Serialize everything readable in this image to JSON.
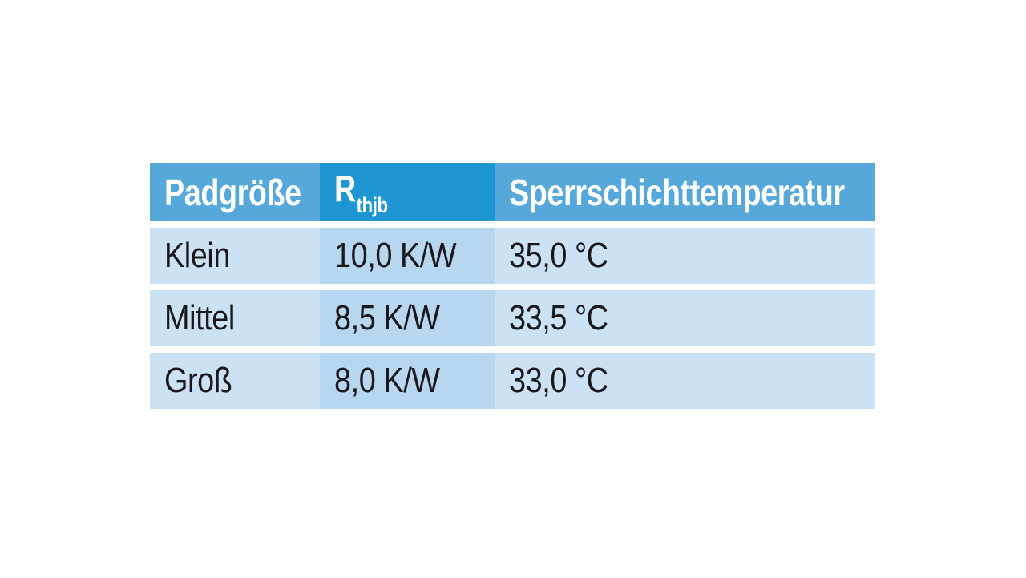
{
  "page": {
    "background": "#ffffff"
  },
  "colors": {
    "header_blue": "#56a8da",
    "header_highlight_blue": "#1e96d2",
    "row_blue": "#cbe1f4",
    "row_highlight_blue": "#b7d7f0",
    "header_text": "#ffffff",
    "body_text": "#1b181c",
    "row_gap": "#ffffff"
  },
  "table": {
    "headers": [
      {
        "label": "Padgröße"
      },
      {
        "base": "R",
        "subscript": "thjb"
      },
      {
        "label": "Sperrschichttemperatur"
      }
    ],
    "rows": [
      [
        "Klein",
        "10,0 K/W",
        "35,0 °C"
      ],
      [
        "Mittel",
        "8,5 K/W",
        "33,5 °C"
      ],
      [
        "Groß",
        "8,0 K/W",
        "33,0 °C"
      ]
    ]
  },
  "chart_data": {
    "type": "table",
    "title": "",
    "columns": [
      "Padgröße",
      "R thjb",
      "Sperrschichttemperatur"
    ],
    "rows": [
      [
        "Klein",
        "10,0 K/W",
        "35,0 °C"
      ],
      [
        "Mittel",
        "8,5 K/W",
        "33,5 °C"
      ],
      [
        "Groß",
        "8,0 K/W",
        "33,0 °C"
      ]
    ],
    "categories": [
      "Klein",
      "Mittel",
      "Groß"
    ],
    "series": [
      {
        "name": "R thjb (K/W)",
        "values": [
          10.0,
          8.5,
          8.0
        ]
      },
      {
        "name": "Sperrschichttemperatur (°C)",
        "values": [
          35.0,
          33.5,
          33.0
        ]
      }
    ]
  }
}
